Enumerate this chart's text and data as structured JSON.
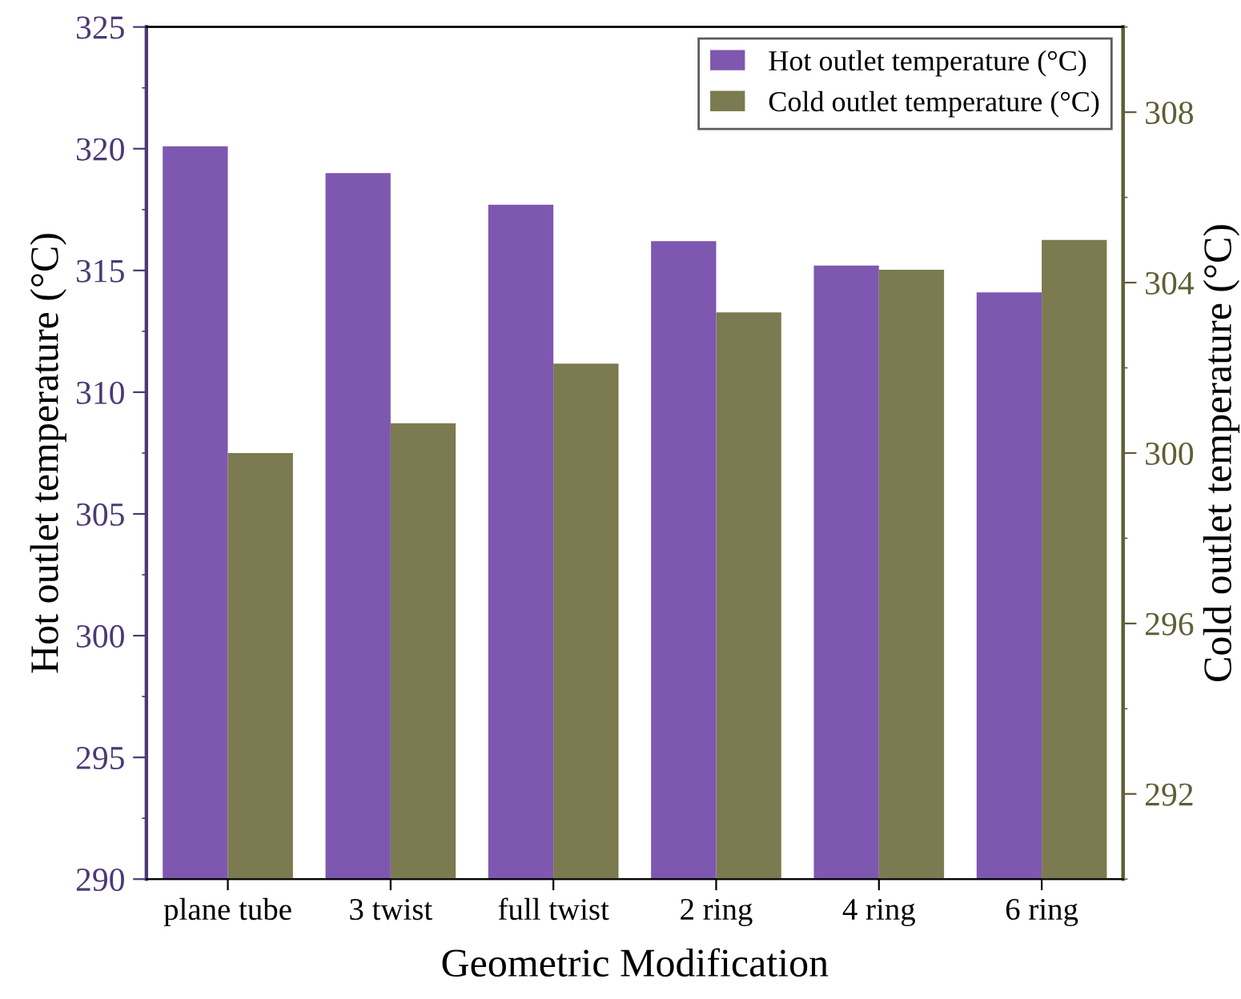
{
  "chart_data": {
    "type": "bar",
    "xlabel": "Geometric Modification",
    "ylabel": "Hot outlet temperature (°C)",
    "y2label": "Cold outlet temperature (°C)",
    "categories": [
      "plane tube",
      "3 twist",
      "full twist",
      "2 ring",
      "4 ring",
      "6 ring"
    ],
    "series": [
      {
        "name": "Hot outlet temperature (°C)",
        "color": "#7e57b0",
        "values": [
          320.1,
          319.0,
          317.7,
          316.2,
          315.2,
          314.1
        ]
      },
      {
        "name": "Cold outlet temperature (°C)",
        "color": "#7b7a50",
        "axis": "y2",
        "values": [
          300.0,
          300.7,
          302.1,
          303.3,
          304.3,
          305.0
        ]
      }
    ],
    "ylim": [
      290,
      325
    ],
    "yticks": [
      290,
      295,
      300,
      305,
      310,
      315,
      320,
      325
    ],
    "y2lim": [
      290,
      310
    ],
    "y2ticks": [
      292,
      296,
      300,
      304,
      308
    ],
    "legend": "top right",
    "grid": false
  }
}
